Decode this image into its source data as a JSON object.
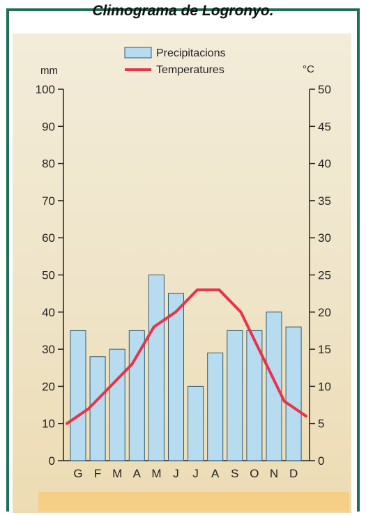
{
  "chart_data": {
    "type": "bar",
    "title": "Climograma de Logronyo.",
    "categories": [
      "G",
      "F",
      "M",
      "A",
      "M",
      "J",
      "J",
      "A",
      "S",
      "O",
      "N",
      "D"
    ],
    "series": [
      {
        "name": "Precipitacions",
        "type": "bar",
        "axis": "left",
        "values": [
          35,
          28,
          30,
          35,
          50,
          45,
          20,
          29,
          35,
          35,
          40,
          36
        ]
      },
      {
        "name": "Temperatures",
        "type": "line",
        "axis": "right",
        "values": [
          5,
          7,
          10,
          13,
          18,
          20,
          23,
          23,
          20,
          14,
          8,
          6
        ]
      }
    ],
    "left_axis": {
      "unit": "mm",
      "ylim": [
        0,
        100
      ],
      "ticks": [
        "0",
        "10",
        "20",
        "30",
        "40",
        "50",
        "60",
        "70",
        "80",
        "90",
        "100"
      ]
    },
    "right_axis": {
      "unit": "°C",
      "ylim": [
        0,
        50
      ],
      "ticks": [
        "0",
        "5",
        "10",
        "15",
        "20",
        "25",
        "30",
        "35",
        "40",
        "45",
        "50"
      ]
    },
    "legend_position": "top-center",
    "colors": {
      "bar_fill": "#b7dcef",
      "bar_stroke": "#2e5b73",
      "line": "#e8334a",
      "axis": "#222222"
    }
  }
}
